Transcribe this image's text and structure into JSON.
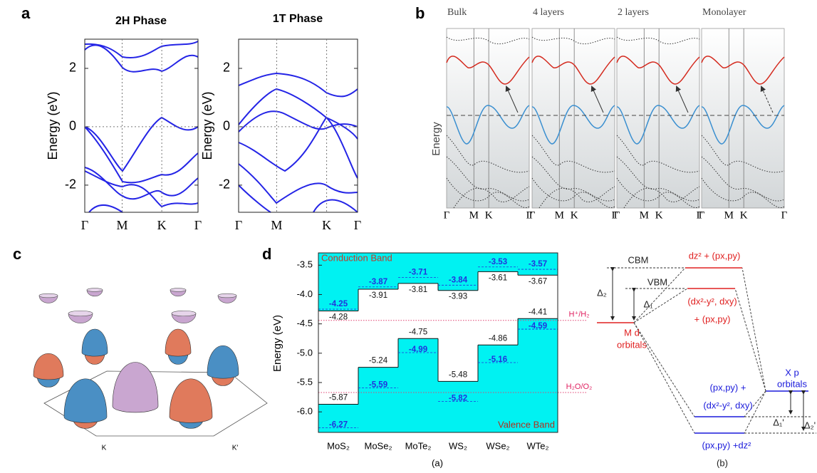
{
  "panel_labels": [
    "a",
    "b",
    "c",
    "d"
  ],
  "chart_data": [
    {
      "type": "band-structure",
      "title": "2H Phase",
      "ylabel": "Energy (eV)",
      "categories": [
        "Γ",
        "M",
        "K",
        "Γ"
      ],
      "ylim": [
        -2.93,
        3.0
      ],
      "yticks": [
        -2,
        0,
        2
      ],
      "color": "#2424e6"
    },
    {
      "type": "band-structure",
      "title": "1T Phase",
      "ylabel": "Energy (eV)",
      "categories": [
        "Γ",
        "M",
        "K",
        "Γ"
      ],
      "ylim": [
        -2.93,
        3.0
      ],
      "yticks": [
        -2,
        0,
        2
      ],
      "color": "#2424e6"
    },
    {
      "type": "band-structure-layers",
      "ylabel": "Energy",
      "panels": [
        "Bulk",
        "4 layers",
        "2 layers",
        "Monolayer"
      ],
      "categories": [
        "Γ",
        "M",
        "K",
        "Γ"
      ],
      "conduction_color": "#d42a1e",
      "valence_color": "#3a8fd0"
    },
    {
      "type": "band-edge",
      "ylabel": "Energy (eV)",
      "caption": "(a)",
      "annotations": [
        "Conduction Band",
        "Valence Band"
      ],
      "categories": [
        "MoS₂",
        "MoSe₂",
        "MoTe₂",
        "WS₂",
        "WSe₂",
        "WTe₂"
      ],
      "conduction_band": {
        "values": [
          -4.28,
          -3.91,
          -3.81,
          -3.93,
          -3.61,
          -3.67
        ],
        "color": "#111111"
      },
      "conduction_band_alt": {
        "values": [
          -4.25,
          -3.87,
          -3.71,
          -3.84,
          -3.53,
          -3.57
        ],
        "color": "#2233dd"
      },
      "valence_band": {
        "values": [
          -5.87,
          -5.24,
          -4.75,
          -5.48,
          -4.86,
          -4.41
        ],
        "color": "#111111"
      },
      "valence_band_alt": {
        "values": [
          -6.27,
          -5.59,
          -4.99,
          -5.82,
          -5.16,
          -4.59
        ],
        "color": "#2233dd"
      },
      "fill_color": "#00f2f2",
      "ylim": [
        -6.35,
        -3.29
      ],
      "yticks": [
        -3.5,
        {
          "value": -4,
          "label": "-4.0"
        },
        -4.5,
        {
          "value": -5,
          "label": "-5.0"
        },
        -5.5,
        {
          "value": -6,
          "label": "-6.0"
        }
      ],
      "reference_lines": [
        {
          "value": -4.44,
          "label": "H⁺/H₂"
        },
        {
          "value": -5.67,
          "label": "H₂O/O₂"
        }
      ]
    }
  ],
  "panel_c": {
    "labels": [
      "K",
      "K′"
    ]
  },
  "panel_orbitals": {
    "caption": "(b)",
    "cbm": "CBM",
    "vbm": "VBM",
    "delta2": "Δ₂",
    "delta1": "Δ₁",
    "metal_d": [
      "M d",
      "orbitals"
    ],
    "x_p": [
      "X p",
      "orbitals"
    ],
    "red_top": "dz² + (px,py)",
    "red_mid": [
      "(dx²-y², dxy)",
      "+ (px,py)"
    ],
    "blue_mid": [
      "(px,py) +",
      "(dx²-y², dxy)"
    ],
    "blue_bottom": "(px,py) +dz²",
    "delta1p": "Δ₁'",
    "delta2p": "Δ₂'"
  }
}
